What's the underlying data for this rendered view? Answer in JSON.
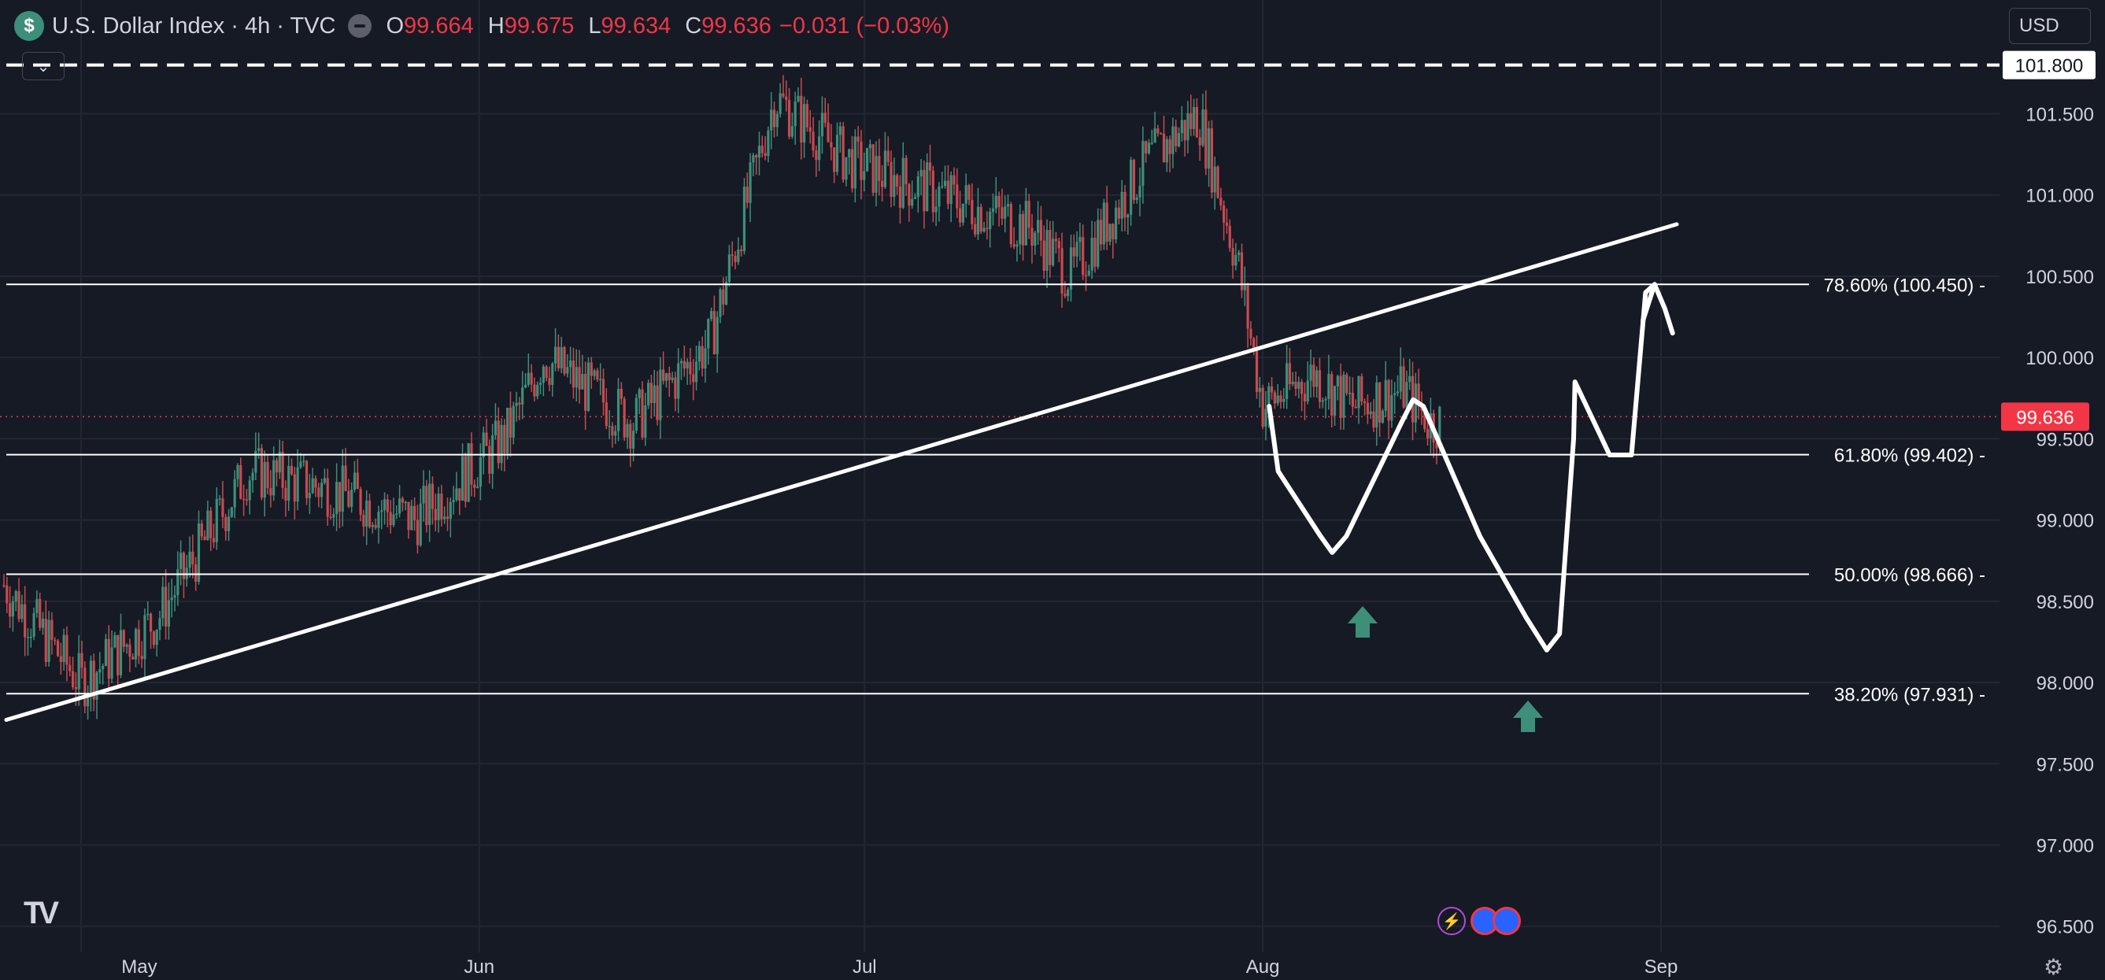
{
  "header": {
    "logo_symbol": "$",
    "title": "U.S. Dollar Index · 4h · TVC",
    "ohlc": [
      {
        "label": "O",
        "value": "99.664"
      },
      {
        "label": "H",
        "value": "99.675"
      },
      {
        "label": "L",
        "value": "99.634"
      },
      {
        "label": "C",
        "value": "99.636"
      }
    ],
    "change": "−0.031 (−0.03%)"
  },
  "toolbar": {
    "collapse_glyph": "⌄",
    "currency": "USD",
    "settings_icon": "gear-icon"
  },
  "branding": {
    "logo": "TV"
  },
  "colors": {
    "background": "#161a25",
    "up": "#3d8f7a",
    "down": "#c94a4f",
    "price_tag": "#f23645",
    "annotation": "#ffffff",
    "arrow": "#3d8f7a",
    "grid": "#232733"
  },
  "chart_data": {
    "type": "candlestick",
    "symbol": "U.S. Dollar Index",
    "timeframe": "4h",
    "x_ticks": [
      "May",
      "Jun",
      "Jul",
      "Aug",
      "Sep"
    ],
    "y_ticks": [
      "96.500",
      "97.000",
      "97.500",
      "98.000",
      "98.500",
      "99.000",
      "99.500",
      "100.000",
      "100.500",
      "101.000",
      "101.500"
    ],
    "ylim": [
      96.3,
      102.2
    ],
    "grid": true,
    "last_price": "99.636",
    "resistance_label": "101.800",
    "fib_levels": [
      {
        "label": "78.60% (100.450)",
        "value": 100.45
      },
      {
        "label": "61.80% (99.402)",
        "value": 99.402
      },
      {
        "label": "50.00% (98.666)",
        "value": 98.666
      },
      {
        "label": "38.20% (97.931)",
        "value": 97.931
      }
    ],
    "trendline": {
      "start": [
        "late Apr",
        97.77
      ],
      "end": [
        "early Sep",
        100.82
      ]
    },
    "price_path_points": [
      [
        "Apr 25",
        98.6
      ],
      [
        "May 1",
        98.0
      ],
      [
        "May 7",
        98.4
      ],
      [
        "May 14",
        99.3
      ],
      [
        "May 20",
        99.2
      ],
      [
        "May 27",
        99.0
      ],
      [
        "Jun 3",
        99.5
      ],
      [
        "Jun 6",
        100.0
      ],
      [
        "Jun 13",
        99.6
      ],
      [
        "Jun 19",
        100.1
      ],
      [
        "Jun 24",
        101.6
      ],
      [
        "Jun 30",
        101.2
      ],
      [
        "Jul 7",
        101.0
      ],
      [
        "Jul 14",
        100.8
      ],
      [
        "Jul 17",
        100.5
      ],
      [
        "Jul 23",
        101.2
      ],
      [
        "Jul 27",
        101.5
      ],
      [
        "Jul 30",
        100.6
      ],
      [
        "Aug 1",
        99.7
      ],
      [
        "Aug 5",
        99.9
      ],
      [
        "Aug 8",
        99.7
      ],
      [
        "Aug 12",
        99.8
      ],
      [
        "Aug 14",
        99.6
      ]
    ],
    "annotations": {
      "projection_path": "double bottom then rally to 78.6% level",
      "arrows": "up"
    }
  }
}
